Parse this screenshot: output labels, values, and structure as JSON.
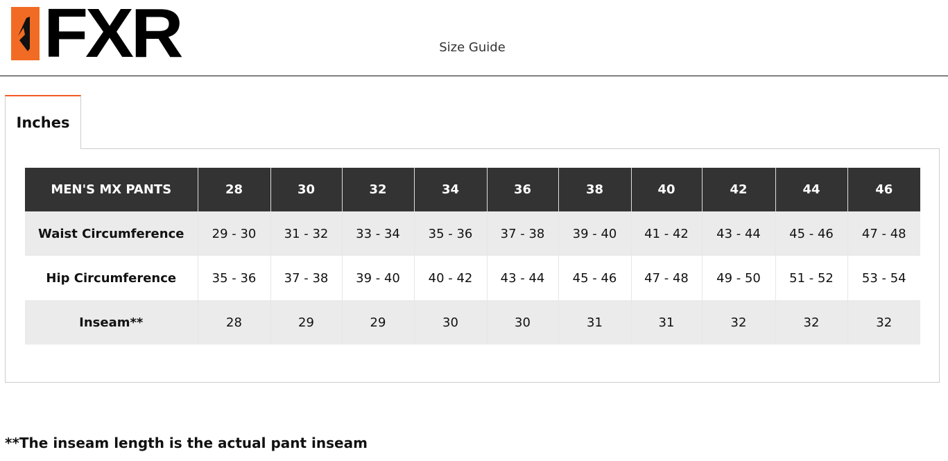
{
  "brand": {
    "name": "FXR",
    "accent": "#f26b24"
  },
  "page_title": "Size Guide",
  "tabs": [
    {
      "label": "Inches",
      "active": true
    }
  ],
  "table": {
    "header": [
      "MEN'S MX PANTS",
      "28",
      "30",
      "32",
      "34",
      "36",
      "38",
      "40",
      "42",
      "44",
      "46"
    ],
    "rows": [
      [
        "Waist Circumference",
        "29 - 30",
        "31 - 32",
        "33 - 34",
        "35 - 36",
        "37 - 38",
        "39 - 40",
        "41 - 42",
        "43 - 44",
        "45 - 46",
        "47 - 48"
      ],
      [
        "Hip Circumference",
        "35 - 36",
        "37 - 38",
        "39 - 40",
        "40 - 42",
        "43 - 44",
        "45 - 46",
        "47 - 48",
        "49 - 50",
        "51 - 52",
        "53 - 54"
      ],
      [
        "Inseam**",
        "28",
        "29",
        "29",
        "30",
        "30",
        "31",
        "31",
        "32",
        "32",
        "32"
      ]
    ]
  },
  "footnote": "**The inseam length is the actual pant inseam"
}
